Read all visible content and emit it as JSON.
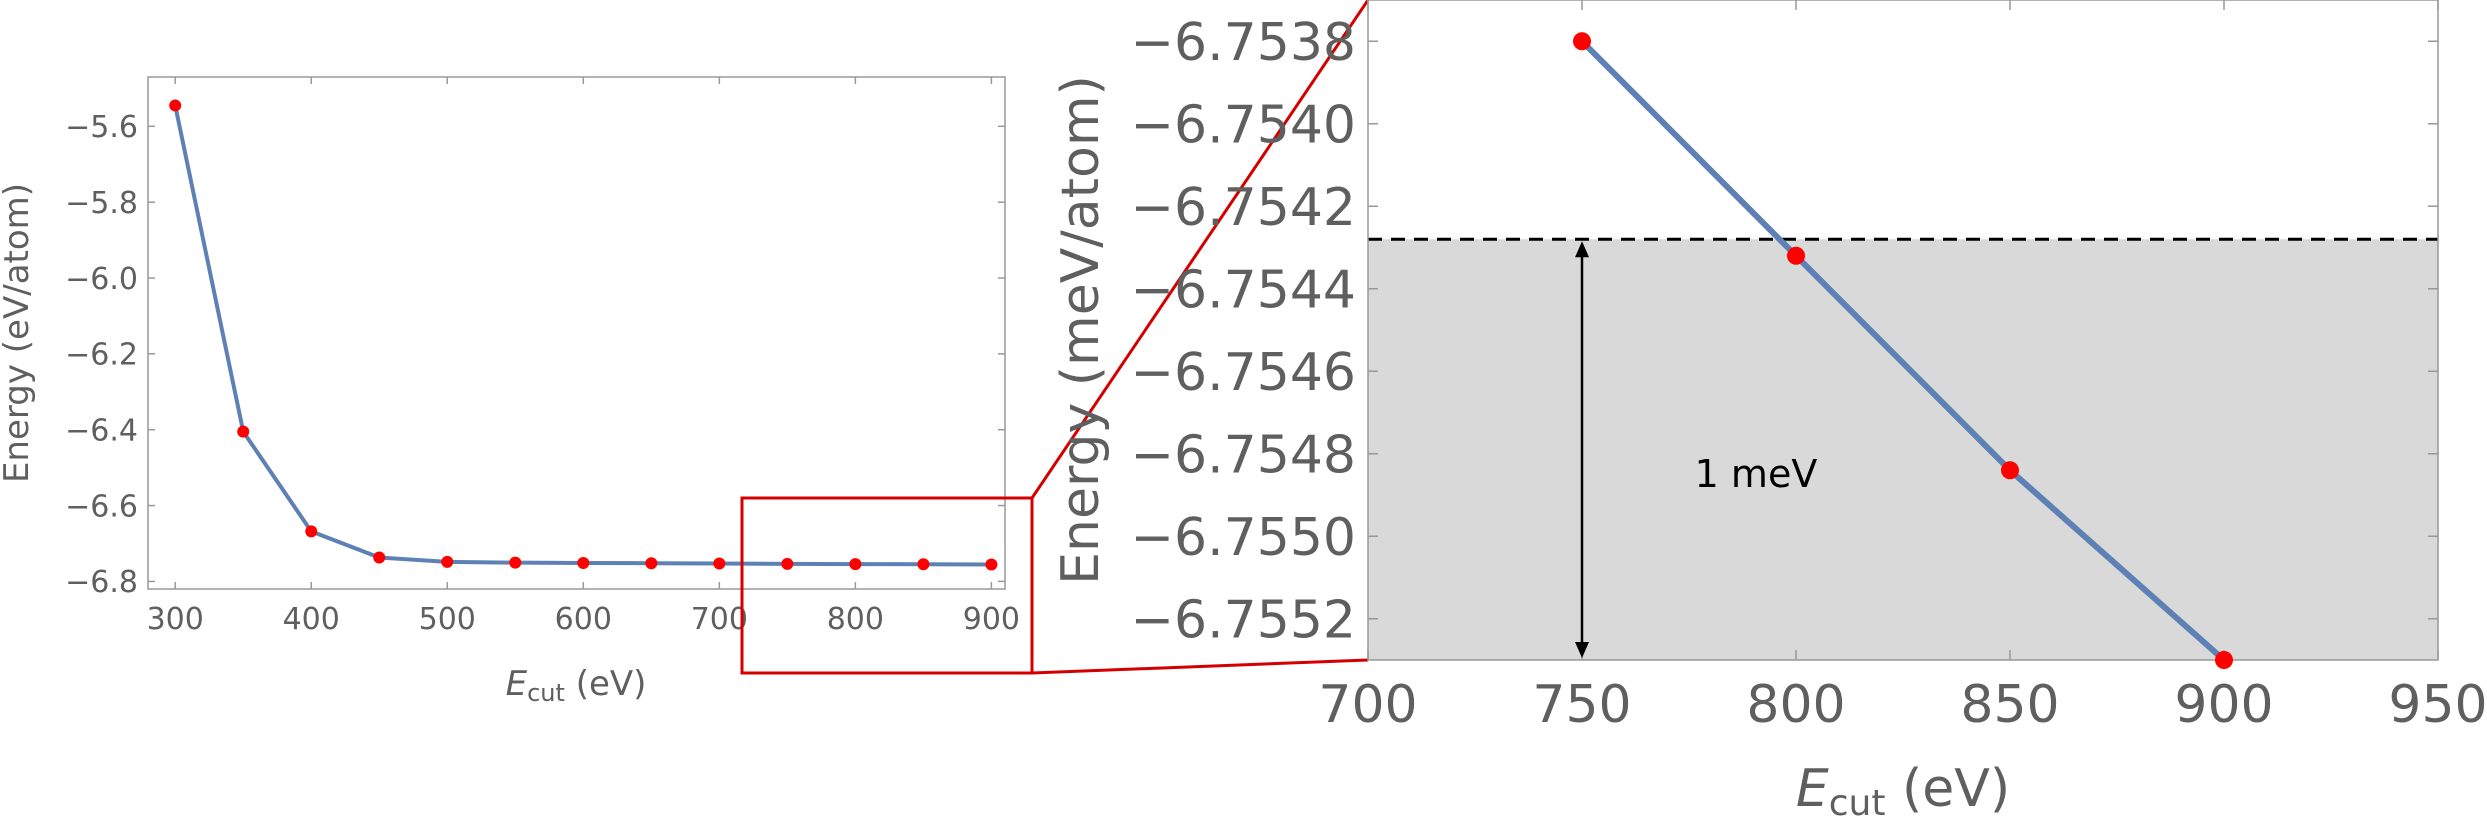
{
  "colors": {
    "line": "#5e81b5",
    "marker": "#ff0000",
    "zoom_box": "#d40000",
    "shade": "#d9d9d9",
    "frame": "#999999",
    "text": "#5f5f5f"
  },
  "chart_data": [
    {
      "type": "line",
      "title": "",
      "xlabel": {
        "main": "E",
        "sub": "cut",
        "unit": " (eV)"
      },
      "ylabel": "Energy (eV/atom)",
      "xlim": [
        280,
        910
      ],
      "ylim": [
        -6.82,
        -5.47
      ],
      "xticks": [
        300,
        400,
        500,
        600,
        700,
        800,
        900
      ],
      "xtick_labels": [
        "300",
        "400",
        "500",
        "600",
        "700",
        "800",
        "900"
      ],
      "yticks": [
        -5.6,
        -5.8,
        -6.0,
        -6.2,
        -6.4,
        -6.6,
        -6.8
      ],
      "ytick_labels": [
        "−5.6",
        "−5.8",
        "−6.0",
        "−6.2",
        "−6.4",
        "−6.6",
        "−6.8"
      ],
      "grid": false,
      "series": [
        {
          "x": [
            300,
            350,
            400,
            450,
            500,
            550,
            600,
            650,
            700,
            750,
            800,
            850,
            900
          ],
          "y": [
            -5.545,
            -6.405,
            -6.668,
            -6.737,
            -6.7485,
            -6.7505,
            -6.7515,
            -6.752,
            -6.7528,
            -6.7538,
            -6.7543,
            -6.7548,
            -6.7553
          ]
        }
      ],
      "annotations": {
        "zoom_region": {
          "x": [
            720,
            930
          ],
          "y": [
            -6.73,
            -7.0
          ]
        }
      }
    },
    {
      "type": "line",
      "title": "",
      "xlabel": {
        "main": "E",
        "sub": "cut",
        "unit": " (eV)"
      },
      "ylabel": "Energy (meV/atom)",
      "xlim": [
        700,
        950
      ],
      "ylim": [
        -6.7553,
        -6.7537
      ],
      "xticks": [
        700,
        750,
        800,
        850,
        900,
        950
      ],
      "xtick_labels": [
        "700",
        "750",
        "800",
        "850",
        "900",
        "950"
      ],
      "yticks": [
        -6.7538,
        -6.754,
        -6.7542,
        -6.7544,
        -6.7546,
        -6.7548,
        -6.755,
        -6.7552
      ],
      "ytick_labels": [
        "−6.7538",
        "−6.7540",
        "−6.7542",
        "−6.7544",
        "−6.7546",
        "−6.7548",
        "−6.7550",
        "−6.7552"
      ],
      "grid": false,
      "series": [
        {
          "x": [
            750,
            800,
            850,
            900
          ],
          "y": [
            -6.7538,
            -6.75432,
            -6.75484,
            -6.7553
          ]
        }
      ],
      "annotations": {
        "band": {
          "y_top": -6.75428,
          "y_bottom": -6.7553
        },
        "arrow_x": 750,
        "label": "1 meV",
        "label_x": 800,
        "label_y": -6.75488
      }
    }
  ]
}
